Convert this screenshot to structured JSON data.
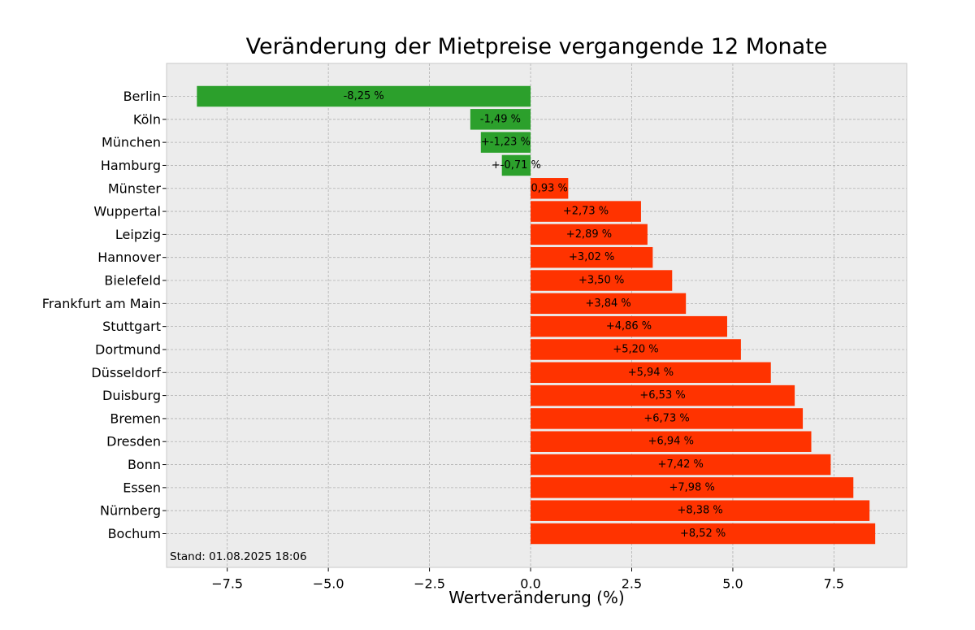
{
  "chart_data": {
    "type": "bar",
    "orientation": "horizontal",
    "title": "Veränderung der Mietpreise vergangende 12 Monate",
    "xlabel": "Wertveränderung (%)",
    "ylabel": "",
    "xlim": [
      -9.0,
      9.3
    ],
    "xticks": [
      -7.5,
      -5.0,
      -2.5,
      0.0,
      2.5,
      5.0,
      7.5
    ],
    "xtick_labels": [
      "−7.5",
      "−5.0",
      "−2.5",
      "0.0",
      "2.5",
      "5.0",
      "7.5"
    ],
    "grid": true,
    "footnote": "Stand: 01.08.2025 18:06",
    "colors": {
      "negative": "#2ca02c",
      "positive": "#ff3300",
      "background": "#ececec",
      "grid": "#b0b0b0",
      "frame": "#c8c8c8"
    },
    "categories": [
      "Berlin",
      "Köln",
      "München",
      "Hamburg",
      "Münster",
      "Wuppertal",
      "Leipzig",
      "Hannover",
      "Bielefeld",
      "Frankfurt am Main",
      "Stuttgart",
      "Dortmund",
      "Düsseldorf",
      "Duisburg",
      "Bremen",
      "Dresden",
      "Bonn",
      "Essen",
      "Nürnberg",
      "Bochum"
    ],
    "values": [
      -8.25,
      -1.49,
      -1.23,
      -0.71,
      0.93,
      2.73,
      2.89,
      3.02,
      3.5,
      3.84,
      4.86,
      5.2,
      5.94,
      6.53,
      6.73,
      6.94,
      7.42,
      7.98,
      8.38,
      8.52
    ],
    "data_labels": [
      "-8,25 %",
      "-1,49 %",
      "+-1,23 %",
      "+-0,71 %",
      "0,93 %",
      "+2,73 %",
      "+2,89 %",
      "+3,02 %",
      "+3,50 %",
      "+3,84 %",
      "+4,86 %",
      "+5,20 %",
      "+5,94 %",
      "+6,53 %",
      "+6,73 %",
      "+6,94 %",
      "+7,42 %",
      "+7,98 %",
      "+8,38 %",
      "+8,52 %"
    ]
  }
}
